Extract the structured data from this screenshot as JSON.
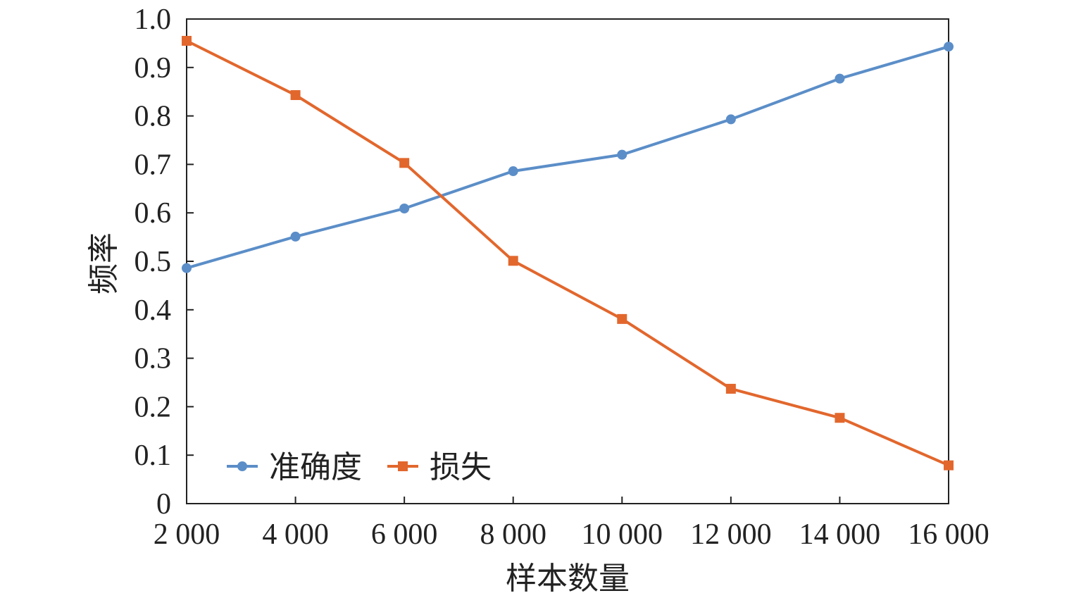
{
  "chart_data": {
    "type": "line",
    "title": "",
    "xlabel": "样本数量",
    "ylabel": "频率",
    "categories": [
      "2 000",
      "4 000",
      "6 000",
      "8 000",
      "10 000",
      "12 000",
      "14 000",
      "16 000"
    ],
    "x": [
      2000,
      4000,
      6000,
      8000,
      10000,
      12000,
      14000,
      16000
    ],
    "xlim": [
      2000,
      16000
    ],
    "ylim": [
      0,
      1.0
    ],
    "yticks": [
      "0",
      "0.1",
      "0.2",
      "0.3",
      "0.4",
      "0.5",
      "0.6",
      "0.7",
      "0.8",
      "0.9",
      "1.0"
    ],
    "ytick_values": [
      0,
      0.1,
      0.2,
      0.3,
      0.4,
      0.5,
      0.6,
      0.7,
      0.8,
      0.9,
      1.0
    ],
    "grid": false,
    "legend_position": "bottom-left",
    "series": [
      {
        "name": "准确度",
        "color": "#5b8ec8",
        "marker": "circle",
        "values": [
          0.486,
          0.551,
          0.609,
          0.686,
          0.72,
          0.793,
          0.877,
          0.943
        ]
      },
      {
        "name": "损失",
        "color": "#e2672d",
        "marker": "square",
        "values": [
          0.955,
          0.843,
          0.703,
          0.501,
          0.381,
          0.237,
          0.177,
          0.079
        ]
      }
    ]
  }
}
